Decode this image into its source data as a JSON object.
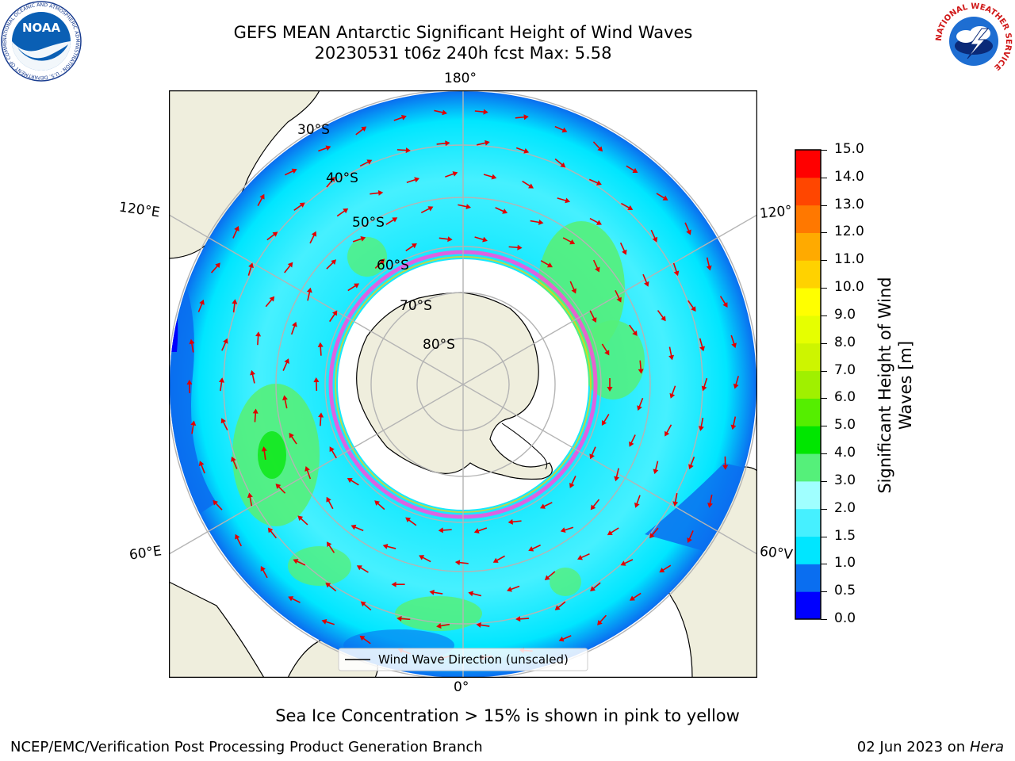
{
  "header": {
    "title_line1": "GEFS MEAN Antarctic Significant Height of Wind Waves",
    "title_line2": "20230531 t06z 240h fcst   Max: 5.58"
  },
  "logos": {
    "left_text": "NOAA",
    "left_ring": "NATIONAL OCEANIC AND ATMOSPHERIC ADMINISTRATION · U.S. DEPARTMENT OF COMMERCE",
    "right_ring": "NATIONAL WEATHER SERVICE"
  },
  "map": {
    "longitude_labels": {
      "top": "180°",
      "bottom": "0°",
      "upper_left": "120°E",
      "lower_left": "60°E",
      "upper_right": "120°",
      "lower_right": "60°V"
    },
    "latitude_labels": [
      "30°S",
      "40°S",
      "50°S",
      "60°S",
      "70°S",
      "80°S"
    ],
    "legend": "Wind Wave Direction (unscaled)",
    "colors": {
      "land": "#efeedd",
      "ice": "#ffffff",
      "arrow": "#e00000",
      "grid": "#b4b4b4"
    }
  },
  "colorbar": {
    "label": "Significant Height of Wind Waves [m]",
    "label_line1": "Significant Height of Wind",
    "label_line2": "Waves [m]",
    "ticks": [
      "0.0",
      "0.5",
      "1.0",
      "1.5",
      "2.0",
      "3.0",
      "4.0",
      "5.0",
      "6.0",
      "7.0",
      "8.0",
      "9.0",
      "10.0",
      "11.0",
      "12.0",
      "13.0",
      "14.0",
      "15.0"
    ],
    "colors": [
      "#0000ff",
      "#0a6ef0",
      "#00e6ff",
      "#46f0ff",
      "#a0ffff",
      "#55f07a",
      "#00e600",
      "#55ee00",
      "#a0f000",
      "#cdf500",
      "#e6ff00",
      "#ffff00",
      "#ffd200",
      "#ffaa00",
      "#ff7800",
      "#ff4600",
      "#ff0000"
    ]
  },
  "notes": {
    "sea_ice": "Sea Ice Concentration > 15% is shown in pink to yellow",
    "footer_left": "NCEP/EMC/Verification Post Processing Product Generation Branch",
    "footer_date": "02 Jun 2023 on",
    "footer_machine": "Hera"
  }
}
